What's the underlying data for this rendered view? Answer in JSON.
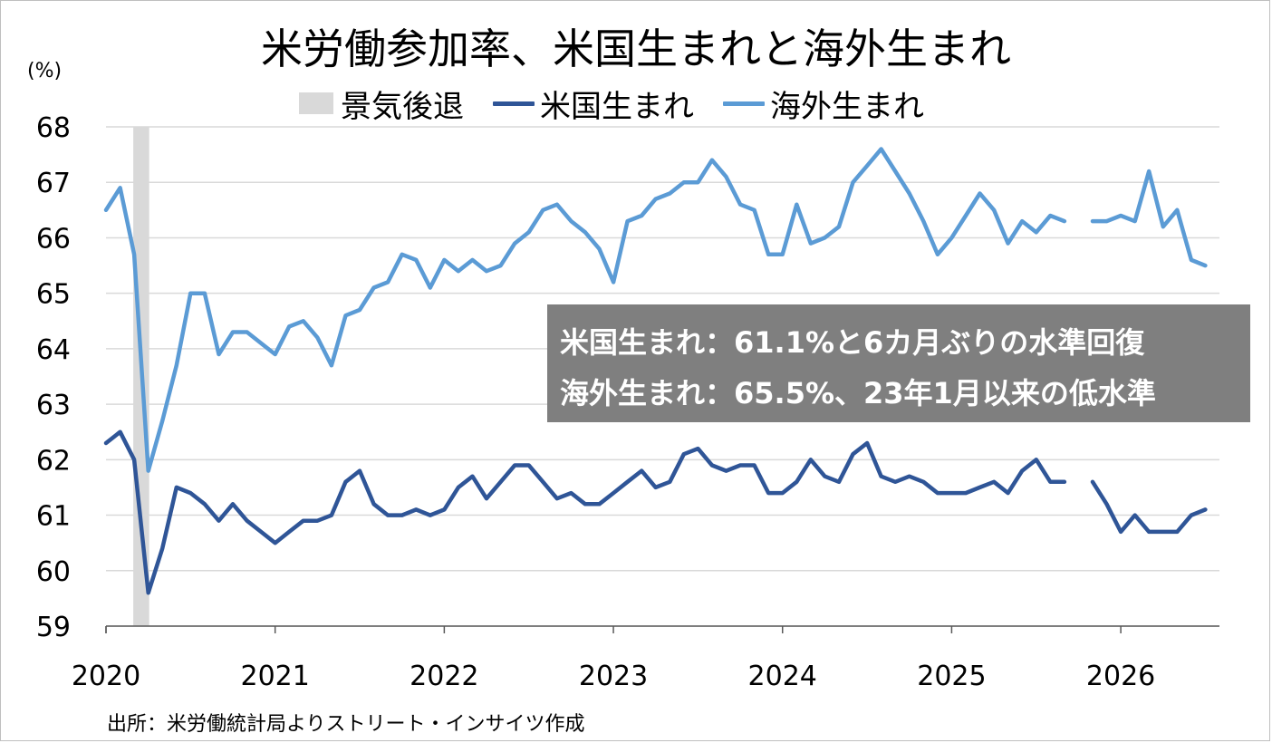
{
  "title": "米労働参加率、米国生まれと海外生まれ",
  "unit": "(%)",
  "legend": {
    "recession": "景気後退",
    "us_born": "米国生まれ",
    "foreign_born": "海外生まれ"
  },
  "annotation": {
    "line1": "米国生まれ：61.1%と6カ月ぶりの水準回復",
    "line2": "海外生まれ：65.5%、23年1月以来の低水準"
  },
  "source": "出所：米労働統計局よりストリート・インサイツ作成",
  "colors": {
    "us_born": "#2f5597",
    "foreign_born": "#5b9bd5",
    "recession": "#d9d9d9",
    "annotation_bg": "#7f7f7f"
  },
  "chart_data": {
    "type": "line",
    "ylim": [
      59,
      68
    ],
    "yticks": [
      59,
      60,
      61,
      62,
      63,
      64,
      65,
      66,
      67,
      68
    ],
    "xlim": [
      "2020-01",
      "2026-08"
    ],
    "xtick_labels": [
      "2020",
      "2021",
      "2022",
      "2023",
      "2024",
      "2025",
      "2026"
    ],
    "recession": {
      "start": "2020-03",
      "end": "2020-04"
    },
    "x": [
      "2020-01",
      "2020-02",
      "2020-03",
      "2020-04",
      "2020-05",
      "2020-06",
      "2020-07",
      "2020-08",
      "2020-09",
      "2020-10",
      "2020-11",
      "2020-12",
      "2021-01",
      "2021-02",
      "2021-03",
      "2021-04",
      "2021-05",
      "2021-06",
      "2021-07",
      "2021-08",
      "2021-09",
      "2021-10",
      "2021-11",
      "2021-12",
      "2022-01",
      "2022-02",
      "2022-03",
      "2022-04",
      "2022-05",
      "2022-06",
      "2022-07",
      "2022-08",
      "2022-09",
      "2022-10",
      "2022-11",
      "2022-12",
      "2023-01",
      "2023-02",
      "2023-03",
      "2023-04",
      "2023-05",
      "2023-06",
      "2023-07",
      "2023-08",
      "2023-09",
      "2023-10",
      "2023-11",
      "2023-12",
      "2024-01",
      "2024-02",
      "2024-03",
      "2024-04",
      "2024-05",
      "2024-06",
      "2024-07",
      "2024-08",
      "2024-09",
      "2024-10",
      "2024-11",
      "2024-12",
      "2025-01",
      "2025-02",
      "2025-03",
      "2025-04",
      "2025-05",
      "2025-06",
      "2025-07",
      "2025-08",
      "2025-09",
      "2025-10",
      "2025-11",
      "2025-12",
      "2026-01",
      "2026-02",
      "2026-03",
      "2026-04",
      "2026-05",
      "2026-06",
      "2026-07"
    ],
    "series": [
      {
        "name": "米国生まれ",
        "values": [
          62.3,
          62.5,
          62.0,
          59.6,
          60.4,
          61.5,
          61.4,
          61.2,
          60.9,
          61.2,
          60.9,
          60.7,
          60.5,
          60.7,
          60.9,
          60.9,
          61.0,
          61.6,
          61.8,
          61.2,
          61.0,
          61.0,
          61.1,
          61.0,
          61.1,
          61.5,
          61.7,
          61.3,
          61.6,
          61.9,
          61.9,
          61.6,
          61.3,
          61.4,
          61.2,
          61.2,
          61.4,
          61.6,
          61.8,
          61.5,
          61.6,
          62.1,
          62.2,
          61.9,
          61.8,
          61.9,
          61.9,
          61.4,
          61.4,
          61.6,
          62.0,
          61.7,
          61.6,
          62.1,
          62.3,
          61.7,
          61.6,
          61.7,
          61.6,
          61.4,
          61.4,
          61.4,
          61.5,
          61.6,
          61.4,
          61.8,
          62.0,
          61.6,
          61.6,
          null,
          61.6,
          61.2,
          60.7,
          61.0,
          60.7,
          60.7,
          60.7,
          61.0,
          61.1
        ]
      },
      {
        "name": "海外生まれ",
        "values": [
          66.5,
          66.9,
          65.7,
          61.8,
          62.7,
          63.7,
          65.0,
          65.0,
          63.9,
          64.3,
          64.3,
          64.1,
          63.9,
          64.4,
          64.5,
          64.2,
          63.7,
          64.6,
          64.7,
          65.1,
          65.2,
          65.7,
          65.6,
          65.1,
          65.6,
          65.4,
          65.6,
          65.4,
          65.5,
          65.9,
          66.1,
          66.5,
          66.6,
          66.3,
          66.1,
          65.8,
          65.2,
          66.3,
          66.4,
          66.7,
          66.8,
          67.0,
          67.0,
          67.4,
          67.1,
          66.6,
          66.5,
          65.7,
          65.7,
          66.6,
          65.9,
          66.0,
          66.2,
          67.0,
          67.3,
          67.6,
          67.2,
          66.8,
          66.3,
          65.7,
          66.0,
          66.4,
          66.8,
          66.5,
          65.9,
          66.3,
          66.1,
          66.4,
          66.3,
          null,
          66.3,
          66.3,
          66.4,
          66.3,
          67.2,
          66.2,
          66.5,
          65.6,
          65.5
        ]
      }
    ]
  }
}
